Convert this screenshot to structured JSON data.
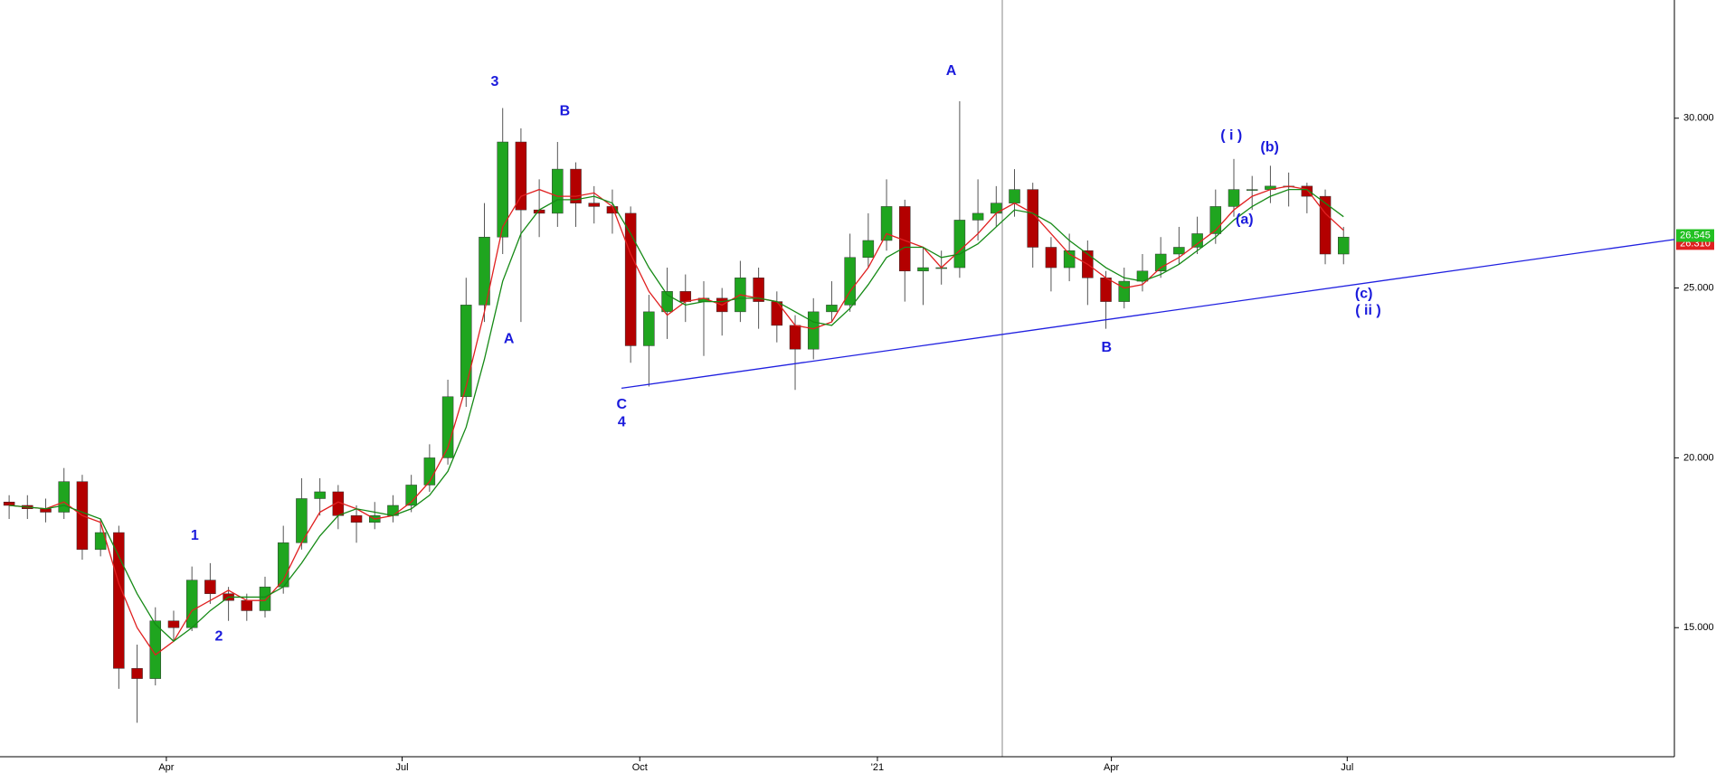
{
  "chart_data": {
    "type": "candlestick",
    "x": [
      0.5,
      1.5,
      2.5,
      3.5,
      4.5,
      5.5,
      6.5,
      7.5,
      8.5,
      9.5,
      10.5,
      11.5,
      12.5,
      13.5,
      14.5,
      15.5,
      16.5,
      17.5,
      18.5,
      19.5,
      20.5,
      21.5,
      22.5,
      23.5,
      24.5,
      25.5,
      26.5,
      27.5,
      28.5,
      29.5,
      30.5,
      31.5,
      32.5,
      33.5,
      34.5,
      35.5,
      36.5,
      37.5,
      38.5,
      39.5,
      40.5,
      41.5,
      42.5,
      43.5,
      44.5,
      45.5,
      46.5,
      47.5,
      48.5,
      49.5,
      50.5,
      51.5,
      52.5,
      53.5,
      54.5,
      55.5,
      56.5,
      57.5,
      58.5,
      59.5,
      60.5,
      61.5,
      62.5,
      63.5,
      64.5,
      65.5,
      66.5,
      67.5,
      68.5,
      69.5,
      70.5,
      71.5,
      72.5,
      73.5
    ],
    "open": [
      18.7,
      18.6,
      18.5,
      18.4,
      19.3,
      17.3,
      17.8,
      13.8,
      13.5,
      15.2,
      15.0,
      16.4,
      16.0,
      15.8,
      15.5,
      16.2,
      17.5,
      18.8,
      19.0,
      18.3,
      18.1,
      18.3,
      18.6,
      19.2,
      20.0,
      21.8,
      24.5,
      26.5,
      29.3,
      27.3,
      27.2,
      28.5,
      27.5,
      27.4,
      27.2,
      23.3,
      24.3,
      24.9,
      24.6,
      24.7,
      24.3,
      25.3,
      24.6,
      23.9,
      23.2,
      24.3,
      24.5,
      25.9,
      26.4,
      27.4,
      25.5,
      25.6,
      25.6,
      27.0,
      27.2,
      27.5,
      27.9,
      26.2,
      25.6,
      26.1,
      25.3,
      24.6,
      25.2,
      25.5,
      26.0,
      26.2,
      26.6,
      27.4,
      27.9,
      27.9,
      28.0,
      28.0,
      27.7,
      26.0
    ],
    "high": [
      18.9,
      18.9,
      18.8,
      19.7,
      19.5,
      18.2,
      18.0,
      14.5,
      15.6,
      15.5,
      16.8,
      16.9,
      16.2,
      16.0,
      16.5,
      18.0,
      19.4,
      19.4,
      19.2,
      18.6,
      18.7,
      18.9,
      19.5,
      20.4,
      22.3,
      25.3,
      27.5,
      30.3,
      29.7,
      28.2,
      29.3,
      28.7,
      28.0,
      27.9,
      27.4,
      24.8,
      25.6,
      25.4,
      25.2,
      25.0,
      25.8,
      25.6,
      24.9,
      24.2,
      24.7,
      25.2,
      26.6,
      27.2,
      28.2,
      27.6,
      26.2,
      26.1,
      30.5,
      28.2,
      28.0,
      28.5,
      28.1,
      26.5,
      26.6,
      26.4,
      25.5,
      25.6,
      26.0,
      26.5,
      26.8,
      27.1,
      27.9,
      28.8,
      28.3,
      28.6,
      28.4,
      28.1,
      27.9,
      26.8
    ],
    "low": [
      18.2,
      18.2,
      18.1,
      18.2,
      17.0,
      17.1,
      13.2,
      12.2,
      13.3,
      14.6,
      14.9,
      15.7,
      15.2,
      15.2,
      15.3,
      16.0,
      17.3,
      18.3,
      17.9,
      17.5,
      17.9,
      18.1,
      18.4,
      19.0,
      19.8,
      21.5,
      24.0,
      26.0,
      24.0,
      26.5,
      26.8,
      26.8,
      26.9,
      26.6,
      22.8,
      22.1,
      23.5,
      24.0,
      23.0,
      23.6,
      24.0,
      23.8,
      23.4,
      22.0,
      22.9,
      24.0,
      24.3,
      25.6,
      26.1,
      24.6,
      24.5,
      25.1,
      25.3,
      26.4,
      26.8,
      27.1,
      25.6,
      24.9,
      25.2,
      24.5,
      23.8,
      24.4,
      24.9,
      25.3,
      25.7,
      26.0,
      26.3,
      27.1,
      27.3,
      27.5,
      27.4,
      27.2,
      25.7,
      25.7
    ],
    "close": [
      18.6,
      18.5,
      18.4,
      19.3,
      17.3,
      17.8,
      13.8,
      13.5,
      15.2,
      15.0,
      16.4,
      16.0,
      15.8,
      15.5,
      16.2,
      17.5,
      18.8,
      19.0,
      18.3,
      18.1,
      18.3,
      18.6,
      19.2,
      20.0,
      21.8,
      24.5,
      26.5,
      29.3,
      27.3,
      27.2,
      28.5,
      27.5,
      27.4,
      27.2,
      23.3,
      24.3,
      24.9,
      24.6,
      24.7,
      24.3,
      25.3,
      24.6,
      23.9,
      23.2,
      24.3,
      24.5,
      25.9,
      26.4,
      27.4,
      25.5,
      25.6,
      25.6,
      27.0,
      27.2,
      27.5,
      27.9,
      26.2,
      25.6,
      26.1,
      25.3,
      24.6,
      25.2,
      25.5,
      26.0,
      26.2,
      26.6,
      27.4,
      27.9,
      27.9,
      28.0,
      28.0,
      27.7,
      26.0,
      26.5
    ],
    "up_color": "#1fa51f",
    "down_color": "#b30000",
    "series": [
      {
        "color": "#e02020",
        "values": [
          18.6,
          18.55,
          18.5,
          18.7,
          18.3,
          18.1,
          16.3,
          15.0,
          14.2,
          14.6,
          15.5,
          15.8,
          16.1,
          15.8,
          15.8,
          16.4,
          17.5,
          18.4,
          18.7,
          18.5,
          18.2,
          18.3,
          18.7,
          19.3,
          20.3,
          22.1,
          24.3,
          26.8,
          27.7,
          27.9,
          27.7,
          27.7,
          27.8,
          27.4,
          26.0,
          24.9,
          24.2,
          24.6,
          24.7,
          24.5,
          24.8,
          24.7,
          24.6,
          23.9,
          23.8,
          24.0,
          24.9,
          25.6,
          26.6,
          26.4,
          26.2,
          25.6,
          26.1,
          26.6,
          27.2,
          27.5,
          27.2,
          26.6,
          26.0,
          25.7,
          25.3,
          25.0,
          25.1,
          25.6,
          25.9,
          26.3,
          26.7,
          27.3,
          27.7,
          27.9,
          28.0,
          27.9,
          27.2,
          26.7
        ]
      },
      {
        "color": "#168a16",
        "values": [
          18.6,
          18.55,
          18.5,
          18.6,
          18.4,
          18.2,
          17.1,
          16.0,
          15.1,
          14.6,
          15.0,
          15.5,
          15.9,
          15.9,
          15.9,
          16.2,
          16.9,
          17.7,
          18.3,
          18.5,
          18.4,
          18.3,
          18.5,
          18.9,
          19.6,
          20.9,
          22.9,
          25.2,
          26.6,
          27.3,
          27.6,
          27.6,
          27.7,
          27.5,
          26.6,
          25.6,
          24.8,
          24.5,
          24.6,
          24.6,
          24.7,
          24.7,
          24.6,
          24.3,
          24.0,
          23.9,
          24.4,
          25.1,
          25.9,
          26.2,
          26.2,
          25.9,
          26.0,
          26.3,
          26.8,
          27.3,
          27.2,
          26.9,
          26.4,
          26.0,
          25.6,
          25.3,
          25.2,
          25.4,
          25.7,
          26.1,
          26.5,
          27.0,
          27.4,
          27.7,
          27.9,
          27.9,
          27.5,
          27.1
        ]
      }
    ],
    "trendline": {
      "color": "#2020e0",
      "x": [
        34.0,
        91.6
      ],
      "y": [
        22.05,
        26.43
      ]
    },
    "xlim": [
      0,
      91.6
    ],
    "xticks": [
      {
        "value": 9.1,
        "label": "Apr"
      },
      {
        "value": 22.0,
        "label": "Jul"
      },
      {
        "value": 35.0,
        "label": "Oct"
      },
      {
        "value": 48.0,
        "label": "'21"
      },
      {
        "value": 60.8,
        "label": "Apr"
      },
      {
        "value": 73.7,
        "label": "Jul"
      }
    ],
    "ylim": [
      11.2,
      33.48
    ],
    "yticks": [
      {
        "value": 15,
        "label": "15.000"
      },
      {
        "value": 20,
        "label": "20.000"
      },
      {
        "value": 25,
        "label": "25.000"
      },
      {
        "value": 30,
        "label": "30.000"
      }
    ],
    "price_labels": [
      {
        "value": 26.31,
        "label": "26.310",
        "color": "#e02020"
      },
      {
        "value": 26.545,
        "label": "26.545",
        "color": "#22c022"
      }
    ],
    "annotations": [
      "3",
      "B",
      "A",
      "1",
      "2",
      "C",
      "4",
      "A",
      "B",
      "( i )",
      "(b)",
      "(a)",
      "(c)",
      "( ii )"
    ],
    "annotation_color": "#1a1adc"
  }
}
